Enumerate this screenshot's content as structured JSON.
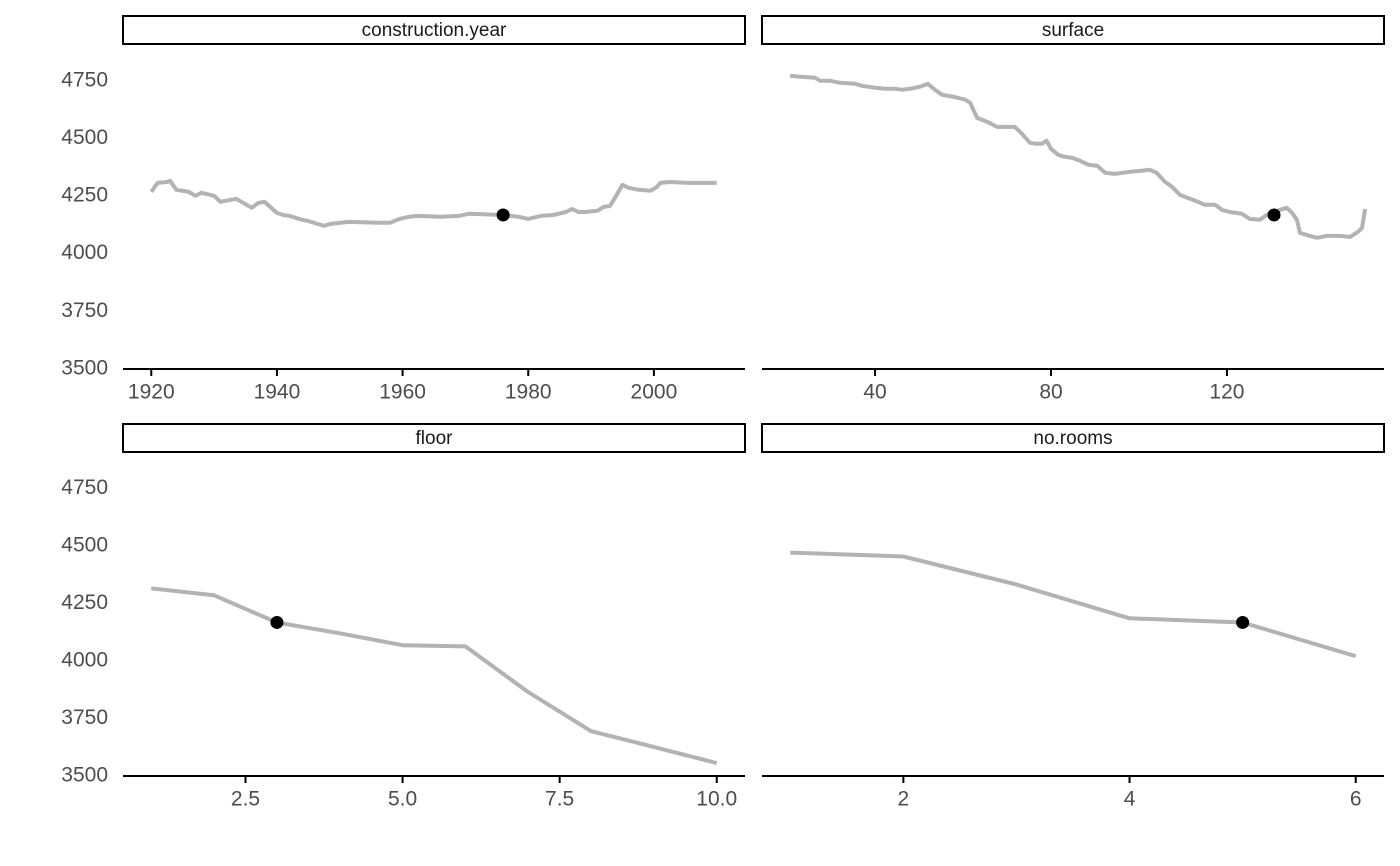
{
  "chart_data": [
    {
      "type": "line",
      "title": "construction.year",
      "x": [
        1920,
        1921,
        1922.5,
        1923,
        1924,
        1926,
        1927,
        1928,
        1930,
        1931,
        1933.5,
        1936,
        1937,
        1938,
        1940,
        1941,
        1942,
        1944,
        1945,
        1946.5,
        1947.5,
        1948.5,
        1950,
        1951.5,
        1956,
        1958,
        1959.5,
        1961,
        1962.5,
        1966,
        1969,
        1970.5,
        1976,
        1978.5,
        1980,
        1982,
        1984,
        1986,
        1987,
        1988,
        1989,
        1991,
        1992,
        1993,
        1994,
        1995,
        1996,
        1997.5,
        1999.5,
        2000.5,
        2001,
        2002.5,
        2005.5,
        2008,
        2010
      ],
      "series": [
        {
          "color": "#b3b3b3",
          "values": [
            4268,
            4307,
            4311,
            4316,
            4277,
            4268,
            4251,
            4264,
            4251,
            4225,
            4238,
            4199,
            4220,
            4225,
            4177,
            4168,
            4164,
            4147,
            4142,
            4129,
            4121,
            4129,
            4134,
            4138,
            4134,
            4134,
            4151,
            4160,
            4164,
            4160,
            4164,
            4173,
            4168,
            4160,
            4151,
            4164,
            4168,
            4181,
            4194,
            4181,
            4181,
            4186,
            4203,
            4207,
            4251,
            4299,
            4286,
            4277,
            4273,
            4290,
            4307,
            4311,
            4307,
            4307,
            4307
          ]
        }
      ],
      "point": {
        "x": 1976,
        "y": 4168,
        "color": "#000000"
      },
      "xlim": [
        1915.5,
        2014.5
      ],
      "xticks": [
        1920,
        1940,
        1960,
        1980,
        2000
      ],
      "ylim": [
        3500,
        4840
      ],
      "yticks": [
        3500,
        3750,
        4000,
        4250,
        4500,
        4750
      ]
    },
    {
      "type": "line",
      "title": "surface",
      "x": [
        20.7,
        23,
        26.4,
        27.5,
        29.8,
        32,
        35.5,
        37,
        40,
        42.3,
        44.5,
        46.1,
        48,
        50.2,
        52,
        53.6,
        55.2,
        58,
        60.5,
        61.6,
        63.2,
        66,
        67.7,
        70.2,
        71.8,
        73.4,
        75.2,
        76.4,
        78,
        79,
        80,
        81.6,
        83.2,
        84.8,
        86.6,
        88.6,
        90.5,
        92.3,
        94.5,
        98,
        100.2,
        102.5,
        104,
        105.9,
        107.5,
        109.3,
        111.6,
        113.4,
        115,
        117.3,
        118.9,
        120.7,
        123.4,
        125.2,
        127.5,
        129,
        132,
        133.6,
        134.8,
        135.9,
        136.6,
        138.9,
        140.5,
        142.7,
        145.7,
        148,
        149.8,
        150.7,
        151.4
      ],
      "series": [
        {
          "color": "#b3b3b3",
          "values": [
            4772,
            4767,
            4763,
            4750,
            4750,
            4741,
            4737,
            4728,
            4720,
            4715,
            4715,
            4711,
            4715,
            4724,
            4737,
            4711,
            4689,
            4680,
            4668,
            4655,
            4589,
            4568,
            4550,
            4550,
            4550,
            4520,
            4481,
            4477,
            4477,
            4490,
            4455,
            4429,
            4420,
            4416,
            4403,
            4385,
            4381,
            4351,
            4346,
            4355,
            4359,
            4364,
            4351,
            4312,
            4290,
            4255,
            4238,
            4225,
            4212,
            4212,
            4190,
            4181,
            4173,
            4151,
            4147,
            4168,
            4190,
            4199,
            4177,
            4147,
            4090,
            4077,
            4069,
            4077,
            4077,
            4073,
            4095,
            4112,
            4194
          ]
        }
      ],
      "point": {
        "x": 130.7,
        "y": 4168,
        "color": "#000000"
      },
      "xlim": [
        14.3,
        155.7
      ],
      "xticks": [
        40,
        80,
        120
      ],
      "ylim": [
        3500,
        4840
      ]
    },
    {
      "type": "line",
      "title": "floor",
      "x": [
        1,
        2,
        3,
        4,
        5,
        6,
        7,
        8,
        9,
        10
      ],
      "series": [
        {
          "color": "#b3b3b3",
          "values": [
            4316,
            4286,
            4168,
            4121,
            4069,
            4064,
            3865,
            3695,
            3626,
            3556
          ]
        }
      ],
      "point": {
        "x": 3,
        "y": 4168,
        "color": "#000000"
      },
      "xlim": [
        0.55,
        10.45
      ],
      "xticks": [
        2.5,
        {
          "value": 5,
          "label": "5.0"
        },
        7.5,
        {
          "value": 10,
          "label": "10.0"
        }
      ],
      "ylim": [
        3500,
        4840
      ],
      "yticks": [
        3500,
        3750,
        4000,
        4250,
        4500,
        4750
      ]
    },
    {
      "type": "line",
      "title": "no.rooms",
      "x": [
        1,
        2,
        3,
        4,
        5,
        6
      ],
      "series": [
        {
          "color": "#b3b3b3",
          "values": [
            4472,
            4455,
            4333,
            4186,
            4168,
            4021
          ]
        }
      ],
      "point": {
        "x": 5,
        "y": 4168,
        "color": "#000000"
      },
      "xlim": [
        0.75,
        6.25
      ],
      "xticks": [
        2,
        4,
        6
      ],
      "ylim": [
        3500,
        4840
      ]
    }
  ]
}
